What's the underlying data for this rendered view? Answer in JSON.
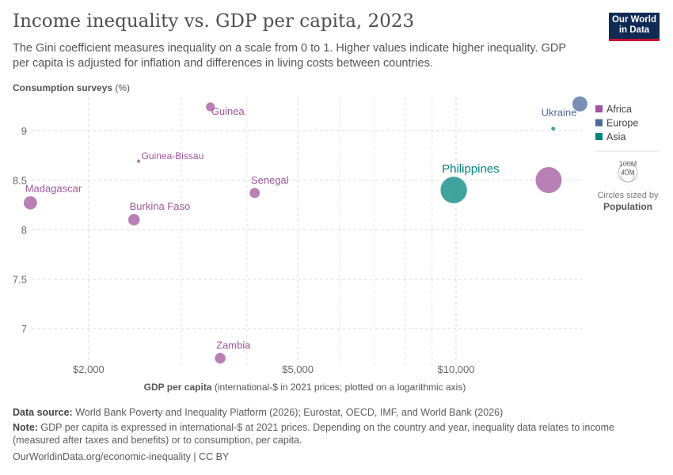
{
  "title": "Income inequality vs. GDP per capita, 2023",
  "subtitle": "The Gini coefficient measures inequality on a scale from 0 to 1. Higher values indicate higher inequality. GDP per capita is adjusted for inflation and differences in living costs between countries.",
  "logo": {
    "line1": "Our World",
    "line2": "in Data"
  },
  "chart_data": {
    "type": "scatter",
    "title": "Income inequality vs. GDP per capita, 2023",
    "ylabel_bold": "Consumption surveys",
    "ylabel_rest": " (%)",
    "xlabel_bold": "GDP per capita",
    "xlabel_rest": " (international-$ in 2021 prices; plotted on a logarithmic axis)",
    "x_scale": "log",
    "xlim": [
      1500,
      18000
    ],
    "ylim": [
      6.6,
      9.35
    ],
    "x_ticks": [
      {
        "value": 2000,
        "label": "$2,000"
      },
      {
        "value": 5000,
        "label": "$5,000"
      },
      {
        "value": 10000,
        "label": "$10,000"
      }
    ],
    "x_minor_grid": [
      3000,
      4000,
      6000,
      7000,
      8000,
      9000
    ],
    "y_ticks": [
      {
        "value": 7,
        "label": "7"
      },
      {
        "value": 7.5,
        "label": "7.5"
      },
      {
        "value": 8,
        "label": "8"
      },
      {
        "value": 8.5,
        "label": "8.5"
      },
      {
        "value": 9,
        "label": "9"
      }
    ],
    "grid": true,
    "legend_position": "right",
    "legend": [
      {
        "name": "Africa",
        "color": "#a2559c"
      },
      {
        "name": "Europe",
        "color": "#4c6a9c"
      },
      {
        "name": "Asia",
        "color": "#00847e"
      }
    ],
    "size_legend": {
      "large": "100M",
      "small": "40M",
      "caption": "Circles sized by",
      "variable": "Population"
    },
    "points": [
      {
        "label": "Madagascar",
        "region": "Africa",
        "x": 1550,
        "y": 8.27,
        "population": 30000000,
        "labelPos": "above"
      },
      {
        "label": "Guinea",
        "region": "Africa",
        "x": 3410,
        "y": 9.24,
        "population": 14000000,
        "labelPos": "right-below"
      },
      {
        "label": "Guinea-Bissau",
        "region": "Africa",
        "x": 2490,
        "y": 8.69,
        "population": 2000000,
        "labelPos": "right"
      },
      {
        "label": "Burkina Faso",
        "region": "Africa",
        "x": 2440,
        "y": 8.1,
        "population": 23000000,
        "labelPos": "above"
      },
      {
        "label": "Senegal",
        "region": "Africa",
        "x": 4140,
        "y": 8.37,
        "population": 18000000,
        "labelPos": "above"
      },
      {
        "label": "Zambia",
        "region": "Africa",
        "x": 3560,
        "y": 6.7,
        "population": 20000000,
        "labelPos": "above"
      },
      {
        "label": "Philippines",
        "region": "Asia",
        "x": 9900,
        "y": 8.4,
        "population": 115000000,
        "labelPos": "above"
      },
      {
        "label": "",
        "region": "Africa",
        "x": 15000,
        "y": 8.5,
        "population": 112000000
      },
      {
        "label": "Ukraine",
        "region": "Europe",
        "x": 17200,
        "y": 9.27,
        "population": 38000000,
        "labelPos": "left-below"
      },
      {
        "label": "",
        "region": "Asia",
        "x": 15300,
        "y": 9.02,
        "population": 3000000
      }
    ]
  },
  "footer": {
    "source_label": "Data source:",
    "source": " World Bank Poverty and Inequality Platform (2026); Eurostat, OECD, IMF, and World Bank (2026)",
    "note_label": "Note:",
    "note": " GDP per capita is expressed in international-$ at 2021 prices. Depending on the country and year, inequality data relates to income (measured after taxes and benefits) or to consumption, per capita.",
    "url": "OurWorldinData.org/economic-inequality | CC BY"
  }
}
